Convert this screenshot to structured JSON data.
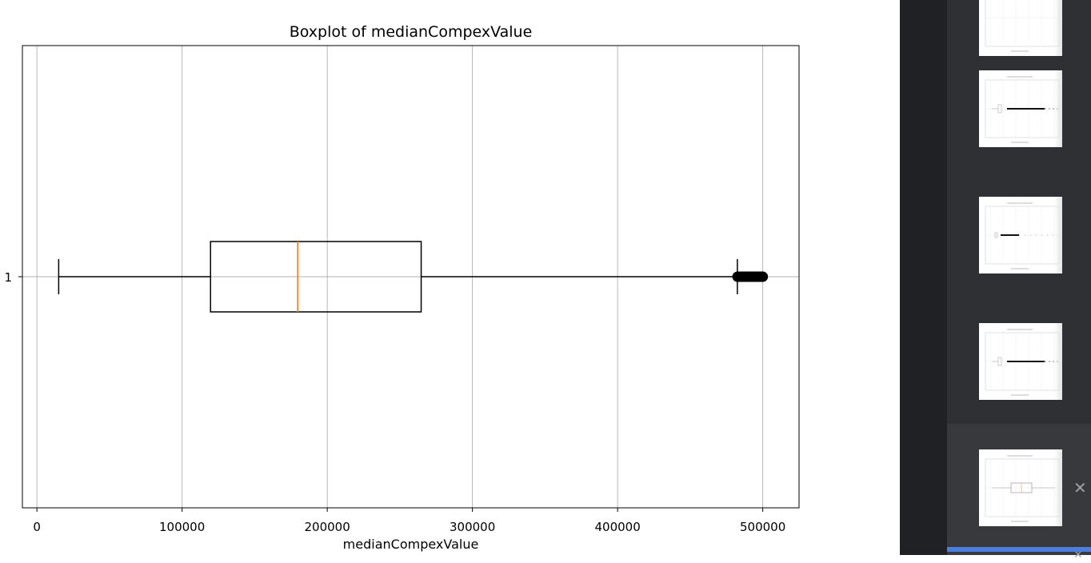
{
  "chart_data": {
    "type": "boxplot",
    "orientation": "horizontal",
    "title": "Boxplot of medianCompexValue",
    "xlabel": "medianCompexValue",
    "ylabel": "",
    "xlim": [
      -10000,
      525000
    ],
    "xticks": [
      0,
      100000,
      200000,
      300000,
      400000,
      500000
    ],
    "xtick_labels": [
      "0",
      "100000",
      "200000",
      "300000",
      "400000",
      "500000"
    ],
    "yticks": [
      1
    ],
    "ytick_labels": [
      "1"
    ],
    "grid": true,
    "series": [
      {
        "position": 1,
        "whisker_low": 14999,
        "q1": 119600,
        "median": 179700,
        "q3": 264700,
        "whisker_high": 482500,
        "outliers_range": [
          482600,
          500001
        ]
      }
    ],
    "colors": {
      "box": "#000000",
      "median": "#ff7f0e",
      "grid": "#b0b0b0"
    }
  },
  "thumbnails": [
    {
      "label": "chart thumbnail 1"
    },
    {
      "label": "chart thumbnail 2"
    },
    {
      "label": "chart thumbnail 3"
    },
    {
      "label": "chart thumbnail 4"
    },
    {
      "label": "chart thumbnail 5",
      "selected": true
    }
  ],
  "ui": {
    "close_glyph": "✕",
    "accent_color": "#4a7fe0"
  }
}
